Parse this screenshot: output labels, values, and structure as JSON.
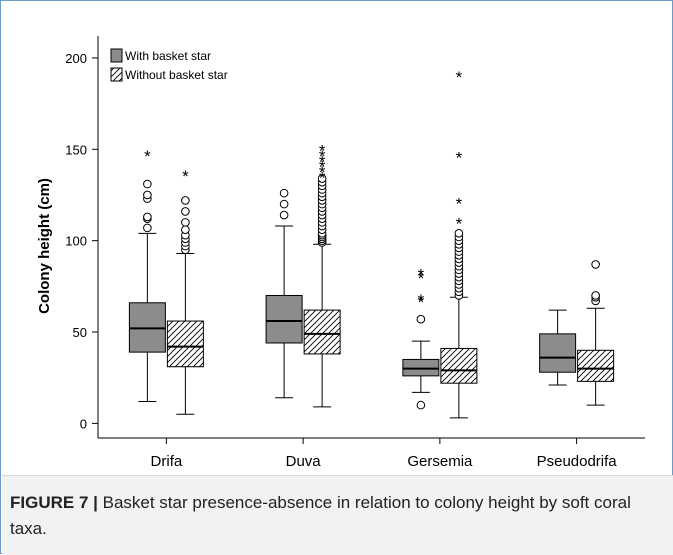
{
  "caption": {
    "label": "FIGURE 7 |",
    "text": " Basket star presence-absence in relation to colony height by soft coral taxa."
  },
  "chart_data": {
    "type": "box",
    "ylabel": "Colony height (cm)",
    "xlabel": "",
    "ylim": [
      -8,
      212
    ],
    "yticks": [
      0,
      50,
      100,
      150,
      200
    ],
    "categories": [
      "Drifa",
      "Duva",
      "Gersemia",
      "Pseudodrifa"
    ],
    "legend": {
      "placement": "top-left",
      "items": [
        {
          "name": "With basket star",
          "fill": "gray"
        },
        {
          "name": "Without basket star",
          "fill": "hatched"
        }
      ]
    },
    "series": [
      {
        "name": "With basket star",
        "boxes": [
          {
            "category": "Drifa",
            "min": 12,
            "q1": 39,
            "median": 52,
            "q3": 66,
            "max": 104,
            "outliers": [
              107,
              112,
              113,
              123,
              125,
              131
            ],
            "extremes": [
              147
            ]
          },
          {
            "category": "Duva",
            "min": 14,
            "q1": 44,
            "median": 56,
            "q3": 70,
            "max": 108,
            "outliers": [
              114,
              120,
              126
            ],
            "extremes": []
          },
          {
            "category": "Gersemia",
            "min": 17,
            "q1": 26,
            "median": 30,
            "q3": 35,
            "max": 45,
            "outliers": [
              10,
              57
            ],
            "extremes": [
              67,
              68,
              80,
              82
            ]
          },
          {
            "category": "Pseudodrifa",
            "min": 21,
            "q1": 28,
            "median": 36,
            "q3": 49,
            "max": 62,
            "outliers": [],
            "extremes": []
          }
        ]
      },
      {
        "name": "Without basket star",
        "boxes": [
          {
            "category": "Drifa",
            "min": 5,
            "q1": 31,
            "median": 42,
            "q3": 56,
            "max": 93,
            "outliers": [
              95,
              97,
              99,
              101,
              103,
              106,
              110,
              116,
              122
            ],
            "extremes": [
              136
            ]
          },
          {
            "category": "Duva",
            "min": 9,
            "q1": 38,
            "median": 49,
            "q3": 62,
            "max": 98,
            "outliers": [
              99,
              100,
              101,
              102,
              103,
              104,
              106,
              108,
              110,
              112,
              114,
              116,
              118,
              120,
              122,
              124,
              126,
              128,
              130,
              132,
              134
            ],
            "extremes": [
              135,
              138,
              141,
              144,
              147,
              150
            ]
          },
          {
            "category": "Gersemia",
            "min": 3,
            "q1": 22,
            "median": 29,
            "q3": 41,
            "max": 69,
            "outliers": [
              70,
              72,
              74,
              76,
              78,
              80,
              82,
              84,
              86,
              88,
              90,
              92,
              94,
              96,
              98,
              100,
              102,
              104
            ],
            "extremes": [
              110,
              121,
              146,
              190
            ]
          },
          {
            "category": "Pseudodrifa",
            "min": 10,
            "q1": 23,
            "median": 30,
            "q3": 40,
            "max": 63,
            "outliers": [
              67,
              69,
              70,
              87
            ],
            "extremes": []
          }
        ]
      }
    ]
  }
}
